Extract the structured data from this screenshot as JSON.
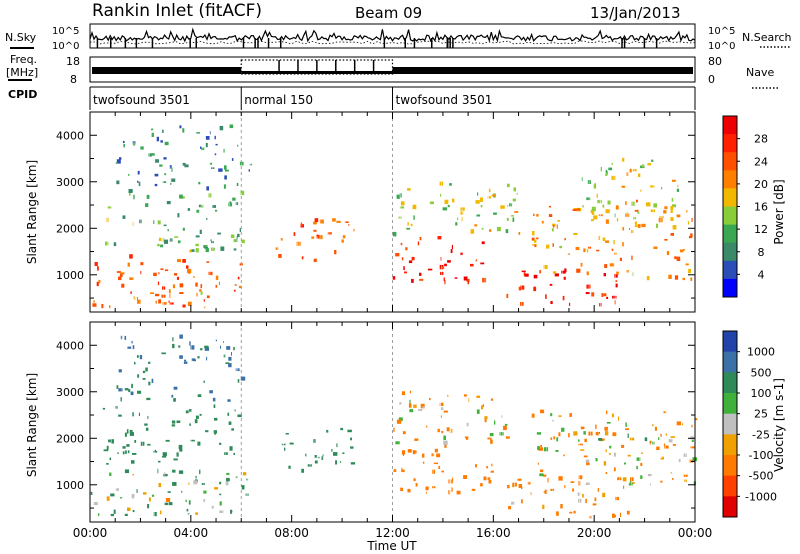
{
  "header": {
    "title": "Rankin Inlet (fitACF)",
    "beam": "Beam 09",
    "date": "13/Jan/2013"
  },
  "noise_panel": {
    "left_label": "N.Sky",
    "right_label": "N.Search",
    "left_tick_top": "10^5",
    "left_tick_bottom": "10^0",
    "right_tick_top": "10^5",
    "right_tick_bottom": "10^0"
  },
  "freq_panel": {
    "left_label_line1": "Freq.",
    "left_label_line2": "[MHz]",
    "right_label": "Nave",
    "left_tick_top": "18",
    "left_tick_bottom": "8",
    "right_tick_top": "80",
    "right_tick_bottom": "0"
  },
  "cpid_panel": {
    "label": "CPID",
    "segments": [
      {
        "name": "twofsound 3501",
        "start": 0,
        "end": 6
      },
      {
        "name": "normal 150",
        "start": 6,
        "end": 12
      },
      {
        "name": "twofsound 3501",
        "start": 12,
        "end": 24
      }
    ]
  },
  "x_axis": {
    "label": "Time UT",
    "ticks": [
      "00:00",
      "04:00",
      "08:00",
      "12:00",
      "16:00",
      "20:00",
      "00:00"
    ],
    "range_hours": [
      0,
      24
    ]
  },
  "colors": {
    "power_scale": [
      "#0000ff",
      "#2b4db8",
      "#3a8a6a",
      "#3aa852",
      "#8acd3a",
      "#f2b800",
      "#ff8000",
      "#ff5000",
      "#ff2000",
      "#ee0000"
    ],
    "velocity_scale": [
      "#2244aa",
      "#3a72a8",
      "#2e8a58",
      "#3fb03a",
      "#c0c0c0",
      "#f0a000",
      "#ff7a00",
      "#ff4000",
      "#e00000"
    ]
  },
  "chart_data": [
    {
      "type": "heatmap",
      "title": "Power",
      "xlabel": "Time UT",
      "ylabel": "Slant Range [km]",
      "xlim": [
        0,
        24
      ],
      "ylim": [
        200,
        4500
      ],
      "yticks": [
        1000,
        2000,
        3000,
        4000
      ],
      "colorbar": {
        "label": "Power [dB]",
        "ticks": [
          "4",
          "8",
          "12",
          "16",
          "20",
          "24",
          "28"
        ],
        "range": [
          0,
          32
        ]
      },
      "echo_regions": [
        {
          "t0": 0.0,
          "t1": 6.2,
          "r0": 300,
          "r1": 1400,
          "value": 24
        },
        {
          "t0": 1.5,
          "t1": 4.5,
          "r0": 350,
          "r1": 700,
          "value": 20
        },
        {
          "t0": 0.5,
          "t1": 6.0,
          "r0": 1500,
          "r1": 2800,
          "value": 12
        },
        {
          "t0": 1.0,
          "t1": 6.0,
          "r0": 2800,
          "r1": 4200,
          "value": 8
        },
        {
          "t0": 6.0,
          "t1": 6.6,
          "r0": 3100,
          "r1": 3500,
          "value": 4
        },
        {
          "t0": 7.3,
          "t1": 10.5,
          "r0": 1300,
          "r1": 2200,
          "value": 24
        },
        {
          "t0": 12.0,
          "t1": 16.0,
          "r0": 800,
          "r1": 1800,
          "value": 28
        },
        {
          "t0": 12.0,
          "t1": 17.0,
          "r0": 1800,
          "r1": 3000,
          "value": 16
        },
        {
          "t0": 16.5,
          "t1": 21.0,
          "r0": 300,
          "r1": 1100,
          "value": 28
        },
        {
          "t0": 17.5,
          "t1": 24.0,
          "r0": 900,
          "r1": 2600,
          "value": 20
        },
        {
          "t0": 19.5,
          "t1": 23.5,
          "r0": 2200,
          "r1": 3500,
          "value": 16
        }
      ]
    },
    {
      "type": "heatmap",
      "title": "Velocity",
      "xlabel": "Time UT",
      "ylabel": "Slant Range [km]",
      "xlim": [
        0,
        24
      ],
      "ylim": [
        200,
        4500
      ],
      "yticks": [
        1000,
        2000,
        3000,
        4000
      ],
      "colorbar": {
        "label": "Velocity [m s-1]",
        "ticks": [
          "1000",
          "500",
          "100",
          "25",
          "-25",
          "-100",
          "-500",
          "-1000"
        ]
      },
      "echo_regions": [
        {
          "t0": 0.0,
          "t1": 6.2,
          "r0": 300,
          "r1": 1300,
          "value": 100
        },
        {
          "t0": 1.5,
          "t1": 4.5,
          "r0": 600,
          "r1": 900,
          "value": 0
        },
        {
          "t0": 0.5,
          "t1": 6.0,
          "r0": 1400,
          "r1": 2700,
          "value": 300
        },
        {
          "t0": 1.0,
          "t1": 6.0,
          "r0": 2800,
          "r1": 4200,
          "value": 500
        },
        {
          "t0": 7.3,
          "t1": 10.5,
          "r0": 1300,
          "r1": 2200,
          "value": 300
        },
        {
          "t0": 12.0,
          "t1": 16.0,
          "r0": 800,
          "r1": 1900,
          "value": -300
        },
        {
          "t0": 12.0,
          "t1": 17.0,
          "r0": 1900,
          "r1": 3000,
          "value": -100
        },
        {
          "t0": 16.5,
          "t1": 21.5,
          "r0": 300,
          "r1": 1200,
          "value": -200
        },
        {
          "t0": 17.5,
          "t1": 24.0,
          "r0": 1000,
          "r1": 2600,
          "value": -100
        },
        {
          "t0": 20.0,
          "t1": 24.0,
          "r0": 1800,
          "r1": 2300,
          "value": 0
        }
      ]
    }
  ]
}
